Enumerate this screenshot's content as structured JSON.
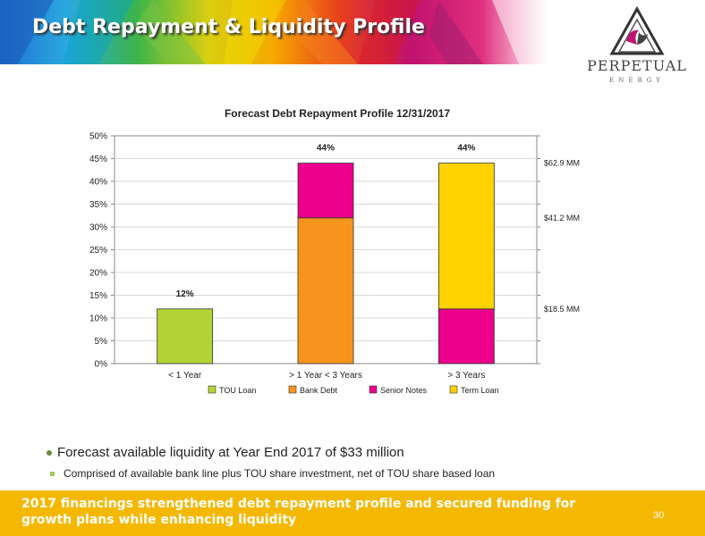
{
  "header": {
    "title": "Debt Repayment & Liquidity Profile"
  },
  "logo": {
    "name": "PERPETUAL",
    "sub": "ENERGY"
  },
  "chart_data": {
    "type": "bar",
    "stacked": true,
    "title": "Forecast Debt Repayment Profile 12/31/2017",
    "categories": [
      "< 1 Year",
      "> 1 Year < 3 Years",
      "> 3 Years"
    ],
    "series": [
      {
        "name": "TOU Loan",
        "color": "#b3d335",
        "values": [
          12,
          0,
          0
        ]
      },
      {
        "name": "Bank Debt",
        "color": "#f7941d",
        "values": [
          0,
          32,
          0
        ]
      },
      {
        "name": "Senior Notes",
        "color": "#ec008c",
        "values": [
          0,
          12,
          12
        ]
      },
      {
        "name": "Term Loan",
        "color": "#ffd200",
        "values": [
          0,
          0,
          32
        ]
      }
    ],
    "totals_labels": [
      "12%",
      "44%",
      "44%"
    ],
    "y_ticks": [
      "0%",
      "5%",
      "10%",
      "15%",
      "20%",
      "25%",
      "30%",
      "35%",
      "40%",
      "45%",
      "50%"
    ],
    "ylim": [
      0,
      50
    ],
    "right_annotations": [
      {
        "value": 44,
        "label": "$62.9 MM"
      },
      {
        "value": 32,
        "label": "$41.2 MM"
      },
      {
        "value": 12,
        "label": "$18.5 MM"
      }
    ],
    "legend_position": "bottom"
  },
  "bullets": {
    "main": "Forecast available liquidity at Year End 2017 of $33 million",
    "sub": "Comprised of available bank line plus TOU share investment, net of TOU share based loan"
  },
  "footer": {
    "text": "2017 financings strengthened debt repayment profile and secured funding for growth plans while enhancing liquidity",
    "page_number": "30"
  }
}
